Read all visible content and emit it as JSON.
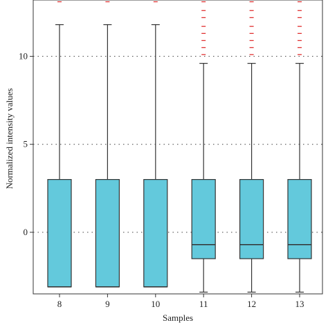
{
  "chart_data": {
    "type": "box",
    "xlabel": "Samples",
    "ylabel": "Normalized intensity values",
    "categories": [
      "8",
      "9",
      "10",
      "11",
      "12",
      "13"
    ],
    "ylim": [
      -3.5,
      13.2
    ],
    "yticks": [
      0,
      5,
      10
    ],
    "grid": "horizontal dotted at y ticks",
    "boxes": [
      {
        "name": "8",
        "whisker_low": -3.1,
        "q1": -3.1,
        "median": -3.1,
        "q3": 3.0,
        "whisker_high": 11.8,
        "outliers": [
          13.1
        ]
      },
      {
        "name": "9",
        "whisker_low": -3.1,
        "q1": -3.1,
        "median": -3.1,
        "q3": 3.0,
        "whisker_high": 11.8,
        "outliers": [
          13.1
        ]
      },
      {
        "name": "10",
        "whisker_low": -3.1,
        "q1": -3.1,
        "median": -3.1,
        "q3": 3.0,
        "whisker_high": 11.8,
        "outliers": [
          13.1
        ]
      },
      {
        "name": "11",
        "whisker_low": -3.4,
        "q1": -1.5,
        "median": -0.7,
        "q3": 3.0,
        "whisker_high": 9.6,
        "outliers": [
          10.1,
          10.5,
          10.9,
          11.3,
          11.7,
          12.2,
          12.6,
          13.1
        ]
      },
      {
        "name": "12",
        "whisker_low": -3.4,
        "q1": -1.5,
        "median": -0.7,
        "q3": 3.0,
        "whisker_high": 9.6,
        "outliers": [
          10.1,
          10.5,
          10.9,
          11.3,
          11.7,
          12.2,
          12.6,
          13.1
        ]
      },
      {
        "name": "13",
        "whisker_low": -3.4,
        "q1": -1.5,
        "median": -0.7,
        "q3": 3.0,
        "whisker_high": 9.6,
        "outliers": [
          10.1,
          10.5,
          10.9,
          11.3,
          11.7,
          12.2,
          12.6,
          13.1
        ]
      }
    ],
    "colors": {
      "box_fill": "#63c9dc",
      "box_stroke": "#333333",
      "outlier": "#e03030",
      "grid": "#555555"
    }
  }
}
